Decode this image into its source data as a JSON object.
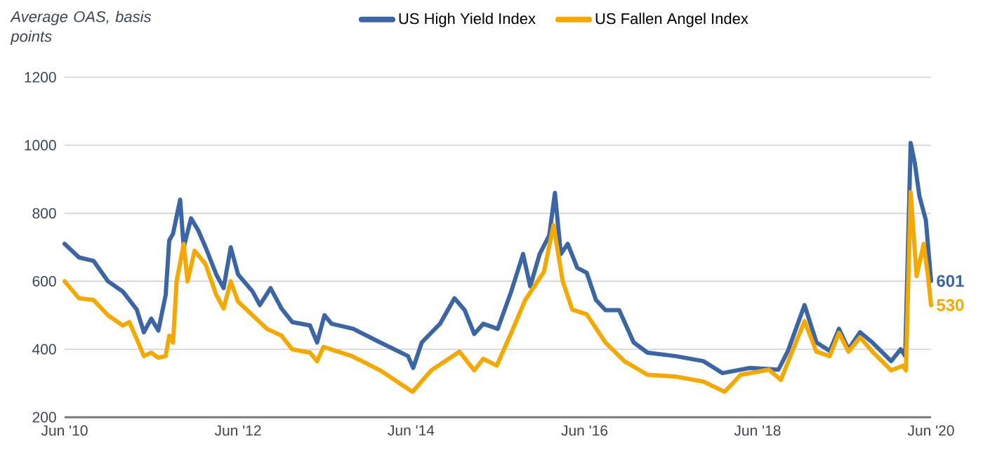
{
  "chart_data": {
    "type": "line",
    "ylabel": "Average OAS, basis points",
    "xlim": [
      "2010-06-01",
      "2020-06-01"
    ],
    "xticks": [
      {
        "value": "2010-06-01",
        "label": "Jun '10"
      },
      {
        "value": "2012-06-01",
        "label": "Jun '12"
      },
      {
        "value": "2014-06-01",
        "label": "Jun '14"
      },
      {
        "value": "2016-06-01",
        "label": "Jun '16"
      },
      {
        "value": "2018-06-01",
        "label": "Jun '18"
      },
      {
        "value": "2020-06-01",
        "label": "Jun '20"
      }
    ],
    "ylim": [
      200,
      1200
    ],
    "yticks": [
      200,
      400,
      600,
      800,
      1000,
      1200
    ],
    "grid": "y",
    "legend": "top",
    "line_style": "solid",
    "marker": "none",
    "series": [
      {
        "name": "US High Yield Index",
        "color": "#3b65a5",
        "x": [
          "2010-06-01",
          "2010-08-01",
          "2010-10-01",
          "2010-12-01",
          "2011-02-01",
          "2011-04-01",
          "2011-05-01",
          "2011-06-01",
          "2011-07-01",
          "2011-08-01",
          "2011-08-16",
          "2011-09-01",
          "2011-10-01",
          "2011-10-16",
          "2011-11-16",
          "2011-12-16",
          "2012-01-16",
          "2012-03-01",
          "2012-04-01",
          "2012-05-01",
          "2012-06-01",
          "2012-08-01",
          "2012-09-01",
          "2012-10-16",
          "2012-12-01",
          "2013-01-16",
          "2013-04-01",
          "2013-05-01",
          "2013-06-01",
          "2013-07-01",
          "2013-10-01",
          "2014-01-22",
          "2014-05-19",
          "2014-06-10",
          "2014-07-16",
          "2014-10-01",
          "2014-12-01",
          "2015-01-13",
          "2015-02-22",
          "2015-04-01",
          "2015-06-01",
          "2015-07-28",
          "2015-09-16",
          "2015-10-16",
          "2015-11-25",
          "2016-01-04",
          "2016-01-28",
          "2016-02-22",
          "2016-03-22",
          "2016-05-01",
          "2016-06-10",
          "2016-07-19",
          "2016-08-28",
          "2016-10-25",
          "2016-12-25",
          "2017-02-22",
          "2017-06-19",
          "2017-10-16",
          "2018-01-04",
          "2018-05-01",
          "2018-08-28",
          "2018-10-07",
          "2018-12-16",
          "2019-02-04",
          "2019-04-01",
          "2019-05-10",
          "2019-06-19",
          "2019-08-07",
          "2019-09-28",
          "2019-12-16",
          "2020-01-25",
          "2020-02-13",
          "2020-03-07",
          "2020-03-25",
          "2020-04-13",
          "2020-05-10",
          "2020-06-01"
        ],
        "values": [
          710,
          670,
          660,
          600,
          570,
          517,
          450,
          490,
          455,
          560,
          720,
          740,
          840,
          700,
          785,
          750,
          700,
          620,
          580,
          700,
          620,
          570,
          530,
          580,
          520,
          480,
          470,
          420,
          500,
          475,
          460,
          420,
          380,
          345,
          420,
          475,
          550,
          515,
          445,
          475,
          460,
          570,
          680,
          585,
          680,
          735,
          860,
          680,
          710,
          640,
          625,
          545,
          515,
          515,
          420,
          390,
          380,
          365,
          330,
          345,
          340,
          395,
          530,
          420,
          395,
          460,
          400,
          450,
          420,
          365,
          400,
          380,
          1007,
          945,
          850,
          780,
          601
        ]
      },
      {
        "name": "US Fallen Angel Index",
        "color": "#f5a800",
        "x": [
          "2010-06-01",
          "2010-08-01",
          "2010-10-01",
          "2010-12-01",
          "2011-02-01",
          "2011-03-01",
          "2011-04-01",
          "2011-05-01",
          "2011-06-01",
          "2011-07-01",
          "2011-08-01",
          "2011-08-16",
          "2011-09-01",
          "2011-09-16",
          "2011-10-16",
          "2011-11-01",
          "2011-12-01",
          "2012-01-16",
          "2012-03-01",
          "2012-04-01",
          "2012-05-01",
          "2012-06-01",
          "2012-08-01",
          "2012-10-01",
          "2012-12-01",
          "2013-01-16",
          "2013-04-01",
          "2013-05-01",
          "2013-05-28",
          "2013-09-25",
          "2014-01-22",
          "2014-06-07",
          "2014-08-25",
          "2014-12-22",
          "2015-02-22",
          "2015-04-01",
          "2015-05-28",
          "2015-07-28",
          "2015-09-25",
          "2015-12-13",
          "2016-01-22",
          "2016-03-01",
          "2016-04-10",
          "2016-06-10",
          "2016-08-28",
          "2016-11-16",
          "2017-02-22",
          "2017-06-19",
          "2017-10-16",
          "2018-01-13",
          "2018-03-22",
          "2018-07-19",
          "2018-09-07",
          "2018-12-16",
          "2019-02-04",
          "2019-04-01",
          "2019-05-10",
          "2019-06-19",
          "2019-08-07",
          "2019-09-28",
          "2019-12-16",
          "2020-02-04",
          "2020-02-16",
          "2020-03-07",
          "2020-04-01",
          "2020-05-01",
          "2020-05-19",
          "2020-06-01"
        ],
        "values": [
          600,
          550,
          545,
          500,
          470,
          480,
          430,
          380,
          390,
          375,
          380,
          440,
          420,
          600,
          710,
          600,
          690,
          650,
          560,
          520,
          600,
          540,
          500,
          460,
          440,
          400,
          390,
          365,
          407,
          380,
          338,
          275,
          338,
          393,
          338,
          372,
          352,
          448,
          545,
          628,
          765,
          600,
          517,
          503,
          420,
          365,
          325,
          320,
          305,
          275,
          325,
          340,
          310,
          483,
          393,
          380,
          448,
          393,
          435,
          393,
          338,
          352,
          338,
          862,
          615,
          710,
          615,
          530
        ]
      }
    ],
    "annotations": [
      {
        "text": "601",
        "x": "2020-06-01",
        "y": 601
      },
      {
        "text": "530",
        "x": "2020-06-01",
        "y": 530
      }
    ]
  }
}
